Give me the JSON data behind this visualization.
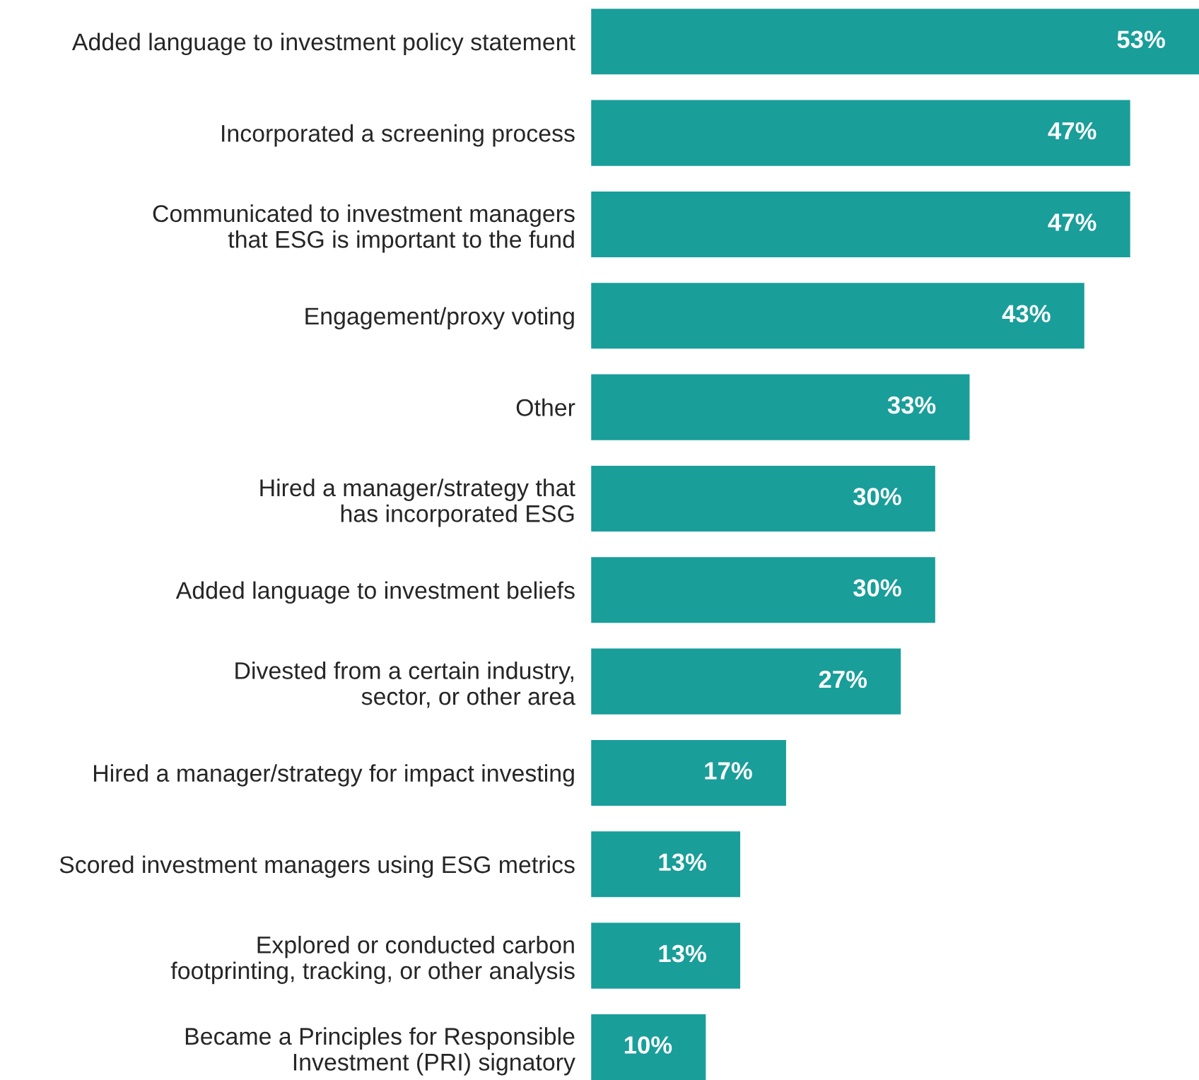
{
  "chart_data": {
    "type": "bar",
    "orientation": "horizontal",
    "categories": [
      "Added language to investment policy statement",
      "Incorporated a screening process",
      "Communicated to investment managers\nthat ESG is important to the fund",
      "Engagement/proxy voting",
      "Other",
      "Hired a manager/strategy that\nhas incorporated ESG",
      "Added language to investment beliefs",
      "Divested from a certain industry,\nsector, or other area",
      "Hired a manager/strategy for impact investing",
      "Scored investment managers using ESG metrics",
      "Explored or conducted carbon\nfootprinting, tracking, or other analysis",
      "Became a Principles for Responsible\nInvestment (PRI) signatory"
    ],
    "values": [
      53,
      47,
      47,
      43,
      33,
      30,
      30,
      27,
      17,
      13,
      13,
      10
    ],
    "value_labels": [
      "53%",
      "47%",
      "47%",
      "43%",
      "33%",
      "30%",
      "30%",
      "27%",
      "17%",
      "13%",
      "13%",
      "10%"
    ],
    "color": "#199e9a",
    "xlim": [
      0,
      53
    ],
    "tick_labels": "y",
    "grid": false,
    "legend": false
  }
}
